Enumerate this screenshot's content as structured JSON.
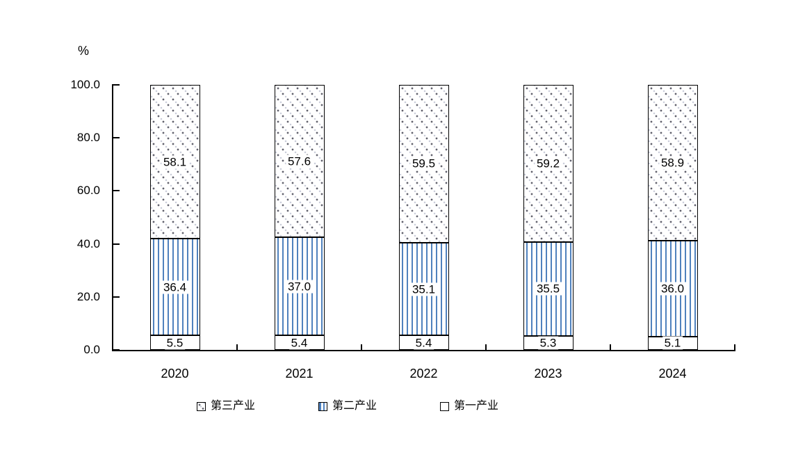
{
  "chart_data": {
    "type": "bar",
    "variant": "stacked-percentage-column",
    "title": "",
    "unit_label": "%",
    "categories": [
      "2020",
      "2021",
      "2022",
      "2023",
      "2024"
    ],
    "series": [
      {
        "name": "第一产业",
        "pattern": "plain",
        "values": [
          5.5,
          5.4,
          5.4,
          5.3,
          5.1
        ]
      },
      {
        "name": "第二产业",
        "pattern": "vertical-stripes",
        "values": [
          36.4,
          37.0,
          35.1,
          35.5,
          36.0
        ]
      },
      {
        "name": "第三产业",
        "pattern": "dots",
        "values": [
          58.1,
          57.6,
          59.5,
          59.2,
          58.9
        ]
      }
    ],
    "y_axis": {
      "min": 0,
      "max": 100,
      "tick_interval": 20,
      "tick_labels": [
        "0.0",
        "20.0",
        "40.0",
        "60.0",
        "80.0",
        "100.0"
      ]
    },
    "x_axis": {
      "tick_marks": "inside-between-categories"
    },
    "grid": false,
    "legend_position": "bottom",
    "legend": [
      {
        "label": "第三产业",
        "pattern": "dots"
      },
      {
        "label": "第二产业",
        "pattern": "vertical-stripes"
      },
      {
        "label": "第一产业",
        "pattern": "plain"
      }
    ],
    "value_label_format": "one-decimal",
    "colors": {
      "stripe_blue": "#4f81bd",
      "dot_dark": "#62626e",
      "dot_light": "#c9cdd9",
      "axis": "#000000",
      "text": "#000000",
      "background": "#ffffff"
    }
  }
}
